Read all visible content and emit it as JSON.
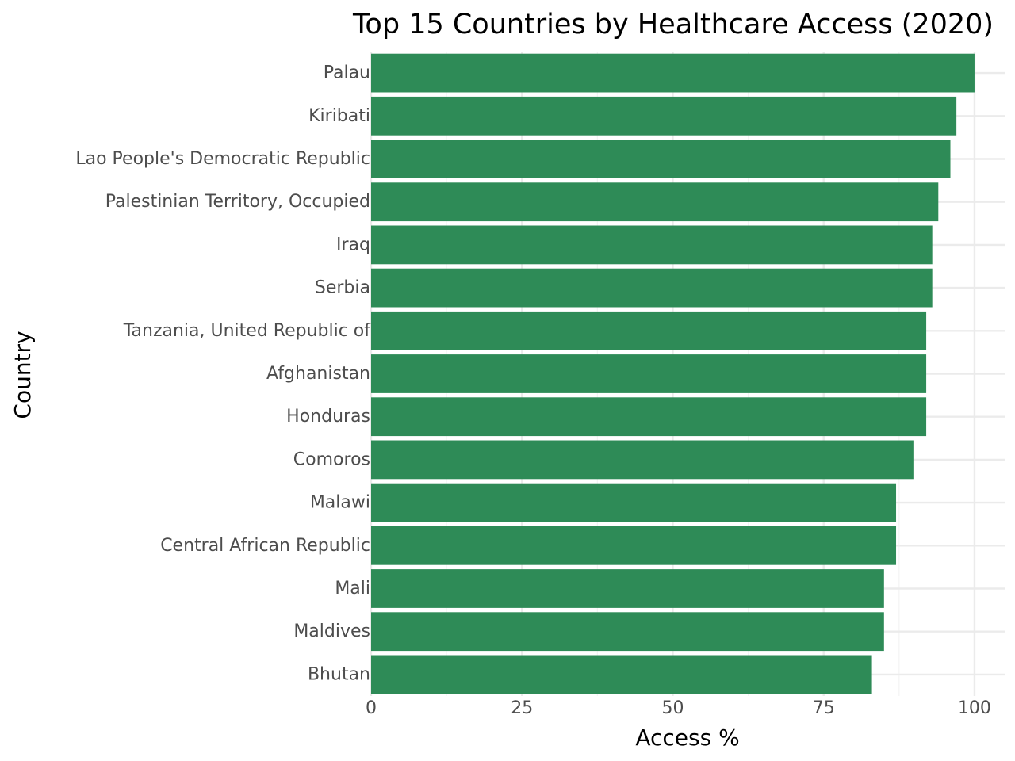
{
  "chart_data": {
    "type": "bar",
    "orientation": "horizontal",
    "title": "Top 15 Countries by Healthcare Access (2020)",
    "xlabel": "Access %",
    "ylabel": "Country",
    "xlim": [
      0,
      105
    ],
    "x_ticks": [
      0,
      25,
      50,
      75,
      100
    ],
    "grid": true,
    "legend": "none",
    "bar_color": "#2e8b57",
    "categories": [
      "Palau",
      "Kiribati",
      "Lao People's Democratic Republic",
      "Palestinian Territory, Occupied",
      "Iraq",
      "Serbia",
      "Tanzania, United Republic of",
      "Afghanistan",
      "Honduras",
      "Comoros",
      "Malawi",
      "Central African Republic",
      "Mali",
      "Maldives",
      "Bhutan"
    ],
    "values": [
      100,
      97,
      96,
      94,
      93,
      93,
      92,
      92,
      92,
      90,
      87,
      87,
      85,
      85,
      83
    ]
  }
}
